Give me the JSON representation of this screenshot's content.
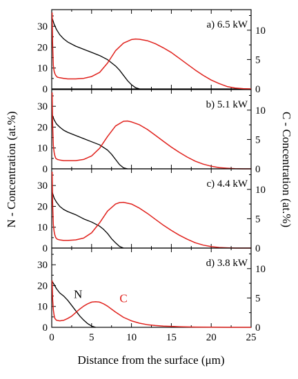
{
  "chart_data": {
    "type": "line",
    "xlabel": "Distance from the surface (μm)",
    "ylabel_left": "N - Concentration (at.%)",
    "ylabel_right": "C - Concentration (at.%)",
    "xlim": [
      0,
      25
    ],
    "xticks": [
      0,
      5,
      10,
      15,
      20,
      25
    ],
    "left_ylim": [
      0,
      38
    ],
    "left_yticks": [
      0,
      10,
      20,
      30
    ],
    "right_ylim": [
      0,
      13.5
    ],
    "right_yticks": [
      0,
      5,
      10
    ],
    "colors": {
      "N": "#000000",
      "C": "#e0201b"
    },
    "series_labels": {
      "N": "N",
      "C": "C"
    },
    "panels": [
      {
        "label": "a) 6.5 kW",
        "N": {
          "x": [
            0.05,
            0.3,
            0.6,
            1,
            1.5,
            2,
            3,
            4,
            5,
            6,
            7,
            8,
            8.5,
            9,
            9.5,
            10,
            10.5,
            11
          ],
          "y": [
            34,
            31,
            28.5,
            26,
            24,
            22.5,
            20.5,
            19,
            17.5,
            16,
            14,
            11,
            9,
            6.5,
            4,
            2,
            0.6,
            0
          ]
        },
        "C": {
          "x": [
            0.05,
            0.1,
            0.2,
            0.3,
            0.4,
            0.5,
            0.7,
            1,
            1.5,
            2,
            3,
            4,
            5,
            6,
            7,
            8,
            9,
            10,
            10.5,
            11,
            12,
            13,
            14,
            15,
            16,
            17,
            18,
            19,
            20,
            21,
            22,
            23,
            24,
            25
          ],
          "y": [
            13,
            8,
            4,
            3,
            2.6,
            2.3,
            2.0,
            1.9,
            1.8,
            1.7,
            1.7,
            1.8,
            2.1,
            2.8,
            4.4,
            6.5,
            7.8,
            8.4,
            8.5,
            8.45,
            8.2,
            7.7,
            7.0,
            6.2,
            5.2,
            4.2,
            3.2,
            2.3,
            1.5,
            0.9,
            0.4,
            0.15,
            0.05,
            0
          ]
        }
      },
      {
        "label": "b) 5.1 kW",
        "N": {
          "x": [
            0.05,
            0.3,
            0.6,
            1,
            1.5,
            2,
            3,
            4,
            5,
            6,
            7,
            7.5,
            8,
            8.5,
            9,
            9.5
          ],
          "y": [
            26,
            23.5,
            21.5,
            20,
            18.5,
            17.5,
            16,
            14.5,
            13,
            11.5,
            9,
            7,
            4.5,
            2,
            0.5,
            0
          ]
        },
        "C": {
          "x": [
            0.05,
            0.1,
            0.2,
            0.3,
            0.4,
            0.5,
            0.7,
            1,
            1.5,
            2,
            3,
            4,
            5,
            6,
            7,
            8,
            9,
            9.5,
            10,
            11,
            12,
            13,
            14,
            15,
            16,
            17,
            18,
            19,
            20,
            21,
            22,
            23,
            24,
            25
          ],
          "y": [
            13,
            8,
            4,
            2.8,
            2.2,
            1.8,
            1.6,
            1.5,
            1.4,
            1.4,
            1.4,
            1.6,
            2.2,
            3.5,
            5.5,
            7.3,
            8.1,
            8.15,
            8.0,
            7.5,
            6.7,
            5.7,
            4.7,
            3.7,
            2.8,
            2.0,
            1.3,
            0.8,
            0.45,
            0.2,
            0.1,
            0.04,
            0,
            0
          ]
        }
      },
      {
        "label": "c) 4.4 kW",
        "N": {
          "x": [
            0.05,
            0.3,
            0.6,
            1,
            1.5,
            2,
            3,
            4,
            5,
            6,
            6.5,
            7,
            7.5,
            8,
            8.5,
            9
          ],
          "y": [
            27,
            24,
            22,
            20,
            18.5,
            17.5,
            16,
            14,
            12.5,
            10.5,
            9,
            7,
            4.5,
            2.5,
            0.8,
            0
          ]
        },
        "C": {
          "x": [
            0.05,
            0.1,
            0.2,
            0.3,
            0.4,
            0.5,
            0.7,
            1,
            1.5,
            2,
            3,
            4,
            5,
            6,
            7,
            8,
            8.5,
            9,
            10,
            11,
            12,
            13,
            14,
            15,
            16,
            17,
            18,
            19,
            20,
            21,
            22,
            23,
            24,
            25
          ],
          "y": [
            13,
            8,
            4,
            2.8,
            2.2,
            1.8,
            1.5,
            1.4,
            1.3,
            1.3,
            1.4,
            1.7,
            2.6,
            4.3,
            6.3,
            7.5,
            7.75,
            7.8,
            7.5,
            6.8,
            5.9,
            4.9,
            3.9,
            3.0,
            2.2,
            1.5,
            0.9,
            0.5,
            0.25,
            0.1,
            0.05,
            0,
            0,
            0
          ]
        }
      },
      {
        "label": "d) 3.8 kW",
        "N": {
          "x": [
            0.05,
            0.3,
            0.6,
            1,
            1.5,
            2,
            2.5,
            3,
            3.5,
            4,
            4.5,
            5,
            5.5
          ],
          "y": [
            22,
            20.5,
            18.5,
            16.5,
            15,
            13,
            10.5,
            8,
            5.5,
            3.5,
            1.8,
            0.6,
            0
          ]
        },
        "C": {
          "x": [
            0.05,
            0.1,
            0.2,
            0.3,
            0.4,
            0.6,
            1,
            1.5,
            2,
            2.5,
            3,
            3.5,
            4,
            4.5,
            5,
            5.5,
            6,
            6.5,
            7,
            7.5,
            8,
            9,
            10,
            11,
            12,
            13,
            14,
            16,
            18,
            20,
            22,
            25
          ],
          "y": [
            8,
            5,
            3,
            2,
            1.5,
            1.2,
            1.1,
            1.2,
            1.5,
            1.9,
            2.5,
            3.1,
            3.6,
            4.0,
            4.3,
            4.35,
            4.3,
            4.0,
            3.6,
            3.1,
            2.6,
            1.7,
            1.1,
            0.7,
            0.45,
            0.3,
            0.2,
            0.1,
            0.05,
            0.02,
            0,
            0
          ]
        }
      }
    ]
  }
}
